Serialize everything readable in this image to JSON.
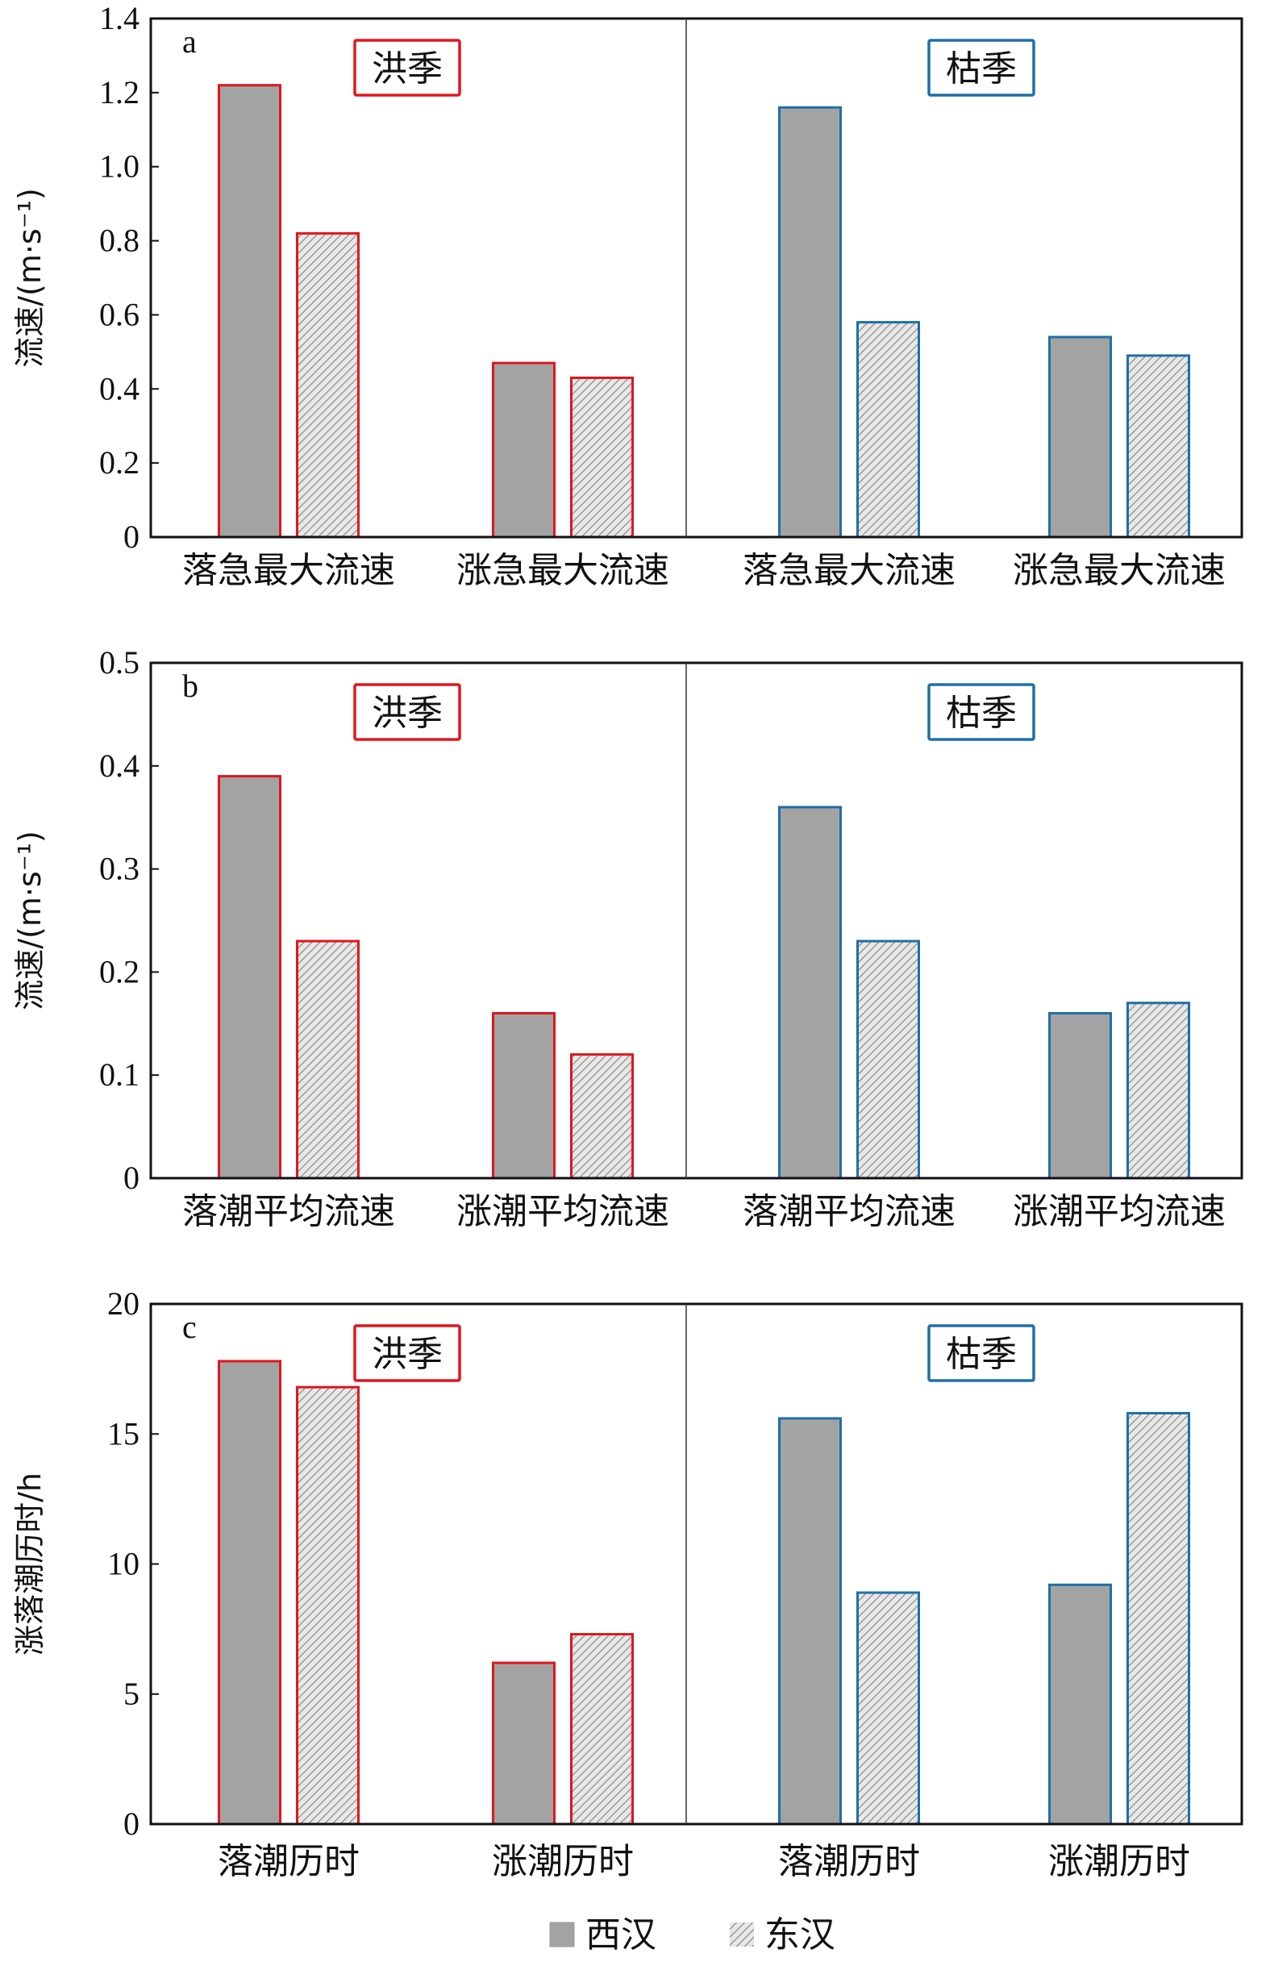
{
  "colors": {
    "flood_season": "#e0161e",
    "dry_season": "#1f6fa8",
    "xihan_fill": "#a3a3a3",
    "donghan_fill": "#d6d6d6"
  },
  "legend": [
    {
      "name": "西汉",
      "pattern": "solid-gray"
    },
    {
      "name": "东汉",
      "pattern": "hatched-gray"
    }
  ],
  "chart_data": [
    {
      "type": "bar",
      "panel": "a",
      "ylabel": "流速/(m·s⁻¹)",
      "ylim": [
        0,
        1.4
      ],
      "yticks": [
        "0",
        "0.2",
        "0.4",
        "0.6",
        "0.8",
        "1.0",
        "1.2",
        "1.4"
      ],
      "season_labels": [
        "洪季",
        "枯季"
      ],
      "categories": [
        "落急最大流速",
        "涨急最大流速",
        "落急最大流速",
        "涨急最大流速"
      ],
      "series": [
        {
          "name": "西汉",
          "values": [
            1.22,
            0.47,
            1.16,
            0.54
          ]
        },
        {
          "name": "东汉",
          "values": [
            0.82,
            0.43,
            0.58,
            0.49
          ]
        }
      ]
    },
    {
      "type": "bar",
      "panel": "b",
      "ylabel": "流速/(m·s⁻¹)",
      "ylim": [
        0,
        0.5
      ],
      "yticks": [
        "0",
        "0.1",
        "0.2",
        "0.3",
        "0.4",
        "0.5"
      ],
      "season_labels": [
        "洪季",
        "枯季"
      ],
      "categories": [
        "落潮平均流速",
        "涨潮平均流速",
        "落潮平均流速",
        "涨潮平均流速"
      ],
      "series": [
        {
          "name": "西汉",
          "values": [
            0.39,
            0.16,
            0.36,
            0.16
          ]
        },
        {
          "name": "东汉",
          "values": [
            0.23,
            0.12,
            0.23,
            0.17
          ]
        }
      ]
    },
    {
      "type": "bar",
      "panel": "c",
      "ylabel": "涨落潮历时/h",
      "ylim": [
        0,
        20
      ],
      "yticks": [
        "0",
        "5",
        "10",
        "15",
        "20"
      ],
      "season_labels": [
        "洪季",
        "枯季"
      ],
      "categories": [
        "落潮历时",
        "涨潮历时",
        "落潮历时",
        "涨潮历时"
      ],
      "series": [
        {
          "name": "西汉",
          "values": [
            17.8,
            6.2,
            15.6,
            9.2
          ]
        },
        {
          "name": "东汉",
          "values": [
            16.8,
            7.3,
            8.9,
            15.8
          ]
        }
      ]
    }
  ]
}
